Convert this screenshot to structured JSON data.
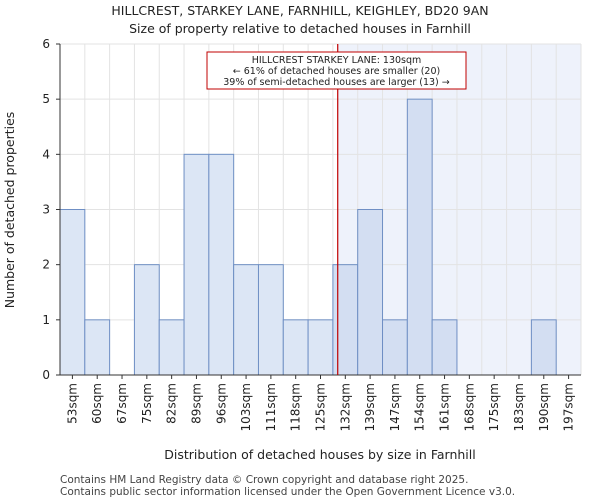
{
  "chart_data": {
    "type": "bar",
    "title": "HILLCREST, STARKEY LANE, FARNHILL, KEIGHLEY, BD20 9AN",
    "subtitle": "Size of property relative to detached houses in Farnhill",
    "xlabel": "Distribution of detached houses by size in Farnhill",
    "ylabel": "Number of detached properties",
    "categories": [
      "53sqm",
      "60sqm",
      "67sqm",
      "75sqm",
      "82sqm",
      "89sqm",
      "96sqm",
      "103sqm",
      "111sqm",
      "118sqm",
      "125sqm",
      "132sqm",
      "139sqm",
      "147sqm",
      "154sqm",
      "161sqm",
      "168sqm",
      "175sqm",
      "183sqm",
      "190sqm",
      "197sqm"
    ],
    "values": [
      3,
      1,
      0,
      2,
      1,
      4,
      4,
      2,
      2,
      1,
      1,
      2,
      3,
      1,
      5,
      1,
      0,
      0,
      0,
      1,
      0
    ],
    "ylim": [
      0,
      6
    ],
    "yticks": [
      0,
      1,
      2,
      3,
      4,
      5,
      6
    ],
    "grid": true,
    "marker": {
      "value_sqm": 130,
      "label_lines": [
        "HILLCREST STARKEY LANE: 130sqm",
        "← 61% of detached houses are smaller (20)",
        "39% of semi-detached houses are larger (13) →"
      ]
    },
    "colors": {
      "bar_fill": "#dce6f5",
      "bar_fill_highlight": "#d3def2",
      "bar_stroke": "#6f8fc4",
      "marker_line": "#c00000",
      "shade": "#eef2fb",
      "grid": "#e3e3e3"
    }
  },
  "footer": {
    "line1": "Contains HM Land Registry data © Crown copyright and database right 2025.",
    "line2": "Contains public sector information licensed under the Open Government Licence v3.0."
  }
}
